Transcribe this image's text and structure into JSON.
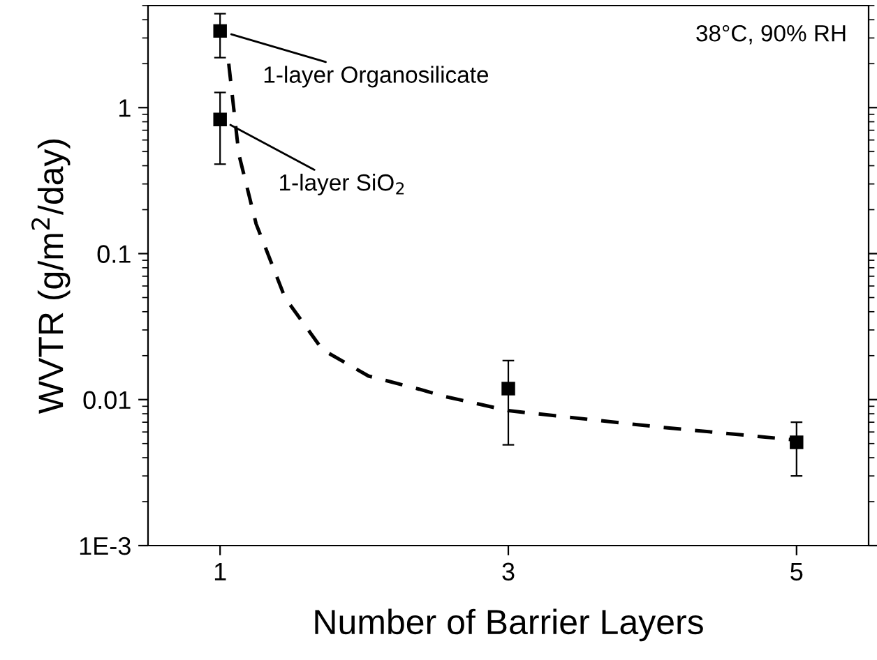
{
  "chart_data": {
    "type": "scatter",
    "xlabel": "Number of Barrier Layers",
    "ylabel": "WVTR (g/m$^{2}$/day)",
    "log": "y",
    "xlim": [
      0.5,
      5.5
    ],
    "xticks": [
      1,
      3,
      5
    ],
    "ylim": [
      0.001,
      5
    ],
    "yticks": [
      {
        "value": 0.001,
        "label": "1E-3"
      },
      0.01,
      0.1,
      1
    ],
    "grid": false,
    "legend": false,
    "series": [
      {
        "color": "#000000",
        "marker": "square",
        "x": [
          1,
          1,
          3,
          5
        ],
        "values": [
          3.35,
          0.83,
          0.0119,
          0.0051
        ],
        "errors": [
          [
            2.2,
            4.4
          ],
          [
            0.41,
            1.27
          ],
          [
            0.0049,
            0.0185
          ],
          [
            0.003,
            0.007
          ]
        ]
      },
      {
        "type": "line",
        "color": "#000000",
        "marker": "none",
        "line_style": "dashed",
        "x": [
          1.06,
          1.13,
          1.25,
          1.45,
          1.71,
          2.03,
          2.38,
          2.56,
          3.0,
          4.04,
          4.98
        ],
        "values": [
          2.0,
          0.48,
          0.16,
          0.05,
          0.022,
          0.0145,
          0.0118,
          0.0105,
          0.0084,
          0.0065,
          0.0053
        ]
      }
    ],
    "annotations": [
      "38°C, 90% RH",
      {
        "text": "1-layer Organosilicate",
        "x": 1,
        "y": 3.35
      },
      {
        "text": "1-layer SiO$_{2}$",
        "x": 1,
        "y": 0.83
      }
    ]
  }
}
